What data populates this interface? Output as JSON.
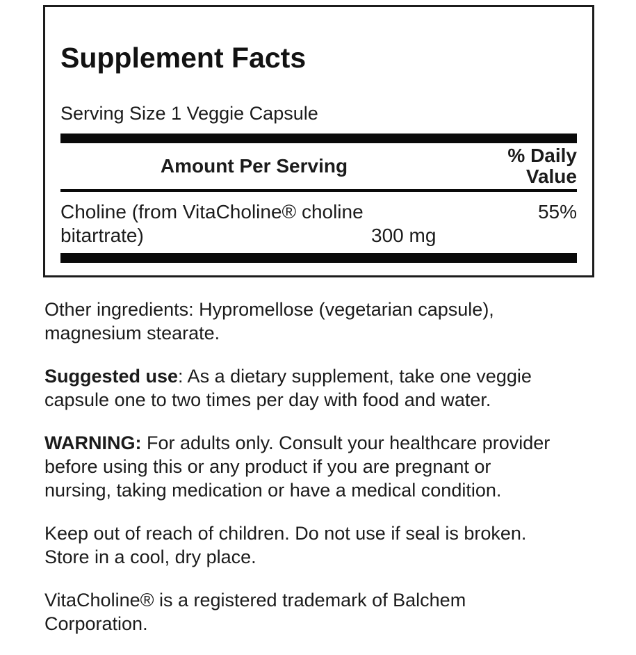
{
  "panel": {
    "title": "Supplement Facts",
    "serving_size": "Serving Size 1 Veggie Capsule",
    "header": {
      "amount_label": "Amount Per Serving",
      "dv_label": "% Daily\nValue"
    },
    "rows": [
      {
        "name_line1": "Choline (from VitaCholine® choline",
        "name_line2": "bitartrate)",
        "amount": "300 mg",
        "daily_value": "55%"
      }
    ]
  },
  "notes": {
    "other_ingredients": "Other ingredients: Hypromellose (vegetarian capsule),\nmagnesium stearate.",
    "suggested_use_label": "Suggested use",
    "suggested_use_text": ": As a dietary supplement, take one veggie\ncapsule one to two times per day with food and water.",
    "warning_label": "WARNING:",
    "warning_text": " For adults only. Consult your healthcare provider\nbefore using this or any product if you are pregnant or\nnursing, taking medication or have a medical condition.",
    "storage": "Keep out of reach of children. Do not use if seal is broken.\nStore in a cool, dry place.",
    "trademark": "VitaCholine® is a registered trademark of Balchem\nCorporation."
  }
}
